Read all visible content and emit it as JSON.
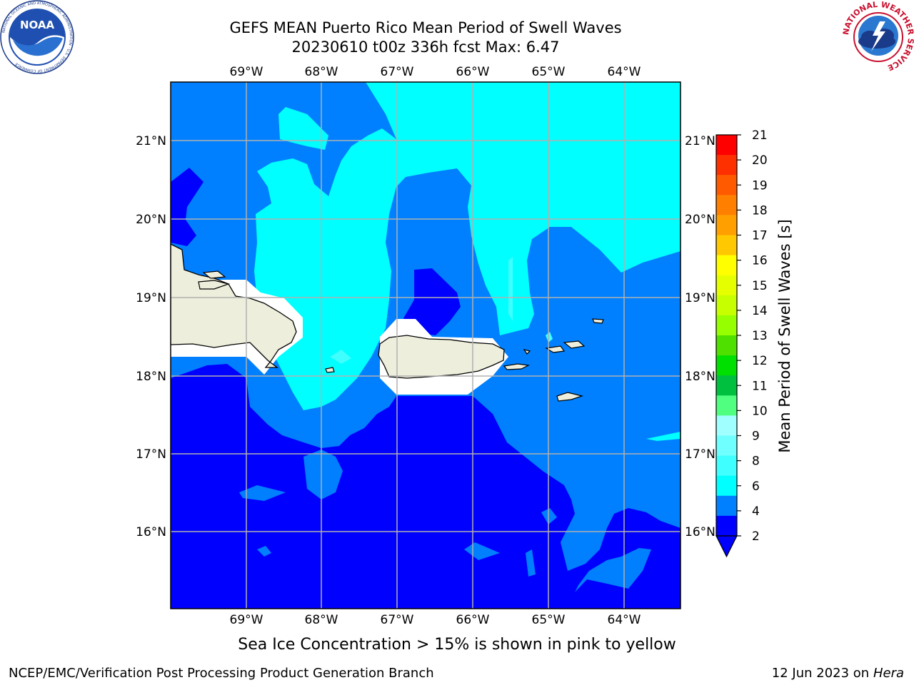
{
  "header": {
    "title_line1": "GEFS MEAN Puerto Rico Mean Period of Swell Waves",
    "title_line2": "20230610 t00z 336h fcst   Max: 6.47"
  },
  "logos": {
    "left": {
      "icon": "noaa-logo",
      "text": "NOAA",
      "ring_text": "NATIONAL OCEANIC AND ATMOSPHERIC ADMINISTRATION · U.S. DEPARTMENT OF COMMERCE"
    },
    "right": {
      "icon": "nws-logo",
      "ring_text": "NATIONAL WEATHER SERVICE"
    }
  },
  "map": {
    "lon_labels": [
      "69°W",
      "68°W",
      "67°W",
      "66°W",
      "65°W",
      "64°W"
    ],
    "lat_labels": [
      "21°N",
      "20°N",
      "19°N",
      "18°N",
      "17°N",
      "16°N"
    ],
    "colors": {
      "band_lt2": "#0000ff",
      "band_2_4": "#0080ff",
      "band_4_6": "#00ffff",
      "band_6_8": "#40ffff",
      "land": "#eeeedc",
      "ice_mask": "#ffffff",
      "grid": "#b0b0b0"
    }
  },
  "colorbar": {
    "label": "Mean Period of Swell Waves [s]",
    "ticks": [
      "21",
      "20",
      "19",
      "18",
      "17",
      "16",
      "15",
      "14",
      "13",
      "12",
      "11",
      "10",
      "9",
      "8",
      "6",
      "4",
      "2"
    ],
    "colors": [
      "#ff0000",
      "#ff3000",
      "#ff5a00",
      "#ff8000",
      "#ffa000",
      "#ffc800",
      "#ffff00",
      "#e6ff00",
      "#c8ff00",
      "#96ff00",
      "#50e000",
      "#00e000",
      "#00c040",
      "#50ff80",
      "#a0ffff",
      "#70ffff",
      "#40ffff",
      "#00ffff",
      "#0080ff",
      "#0000ff"
    ]
  },
  "footer": {
    "note": "Sea Ice Concentration > 15% is shown in pink to yellow",
    "left": "NCEP/EMC/Verification Post Processing Product Generation Branch",
    "right_date": "12 Jun 2023 on",
    "right_host": "Hera"
  }
}
